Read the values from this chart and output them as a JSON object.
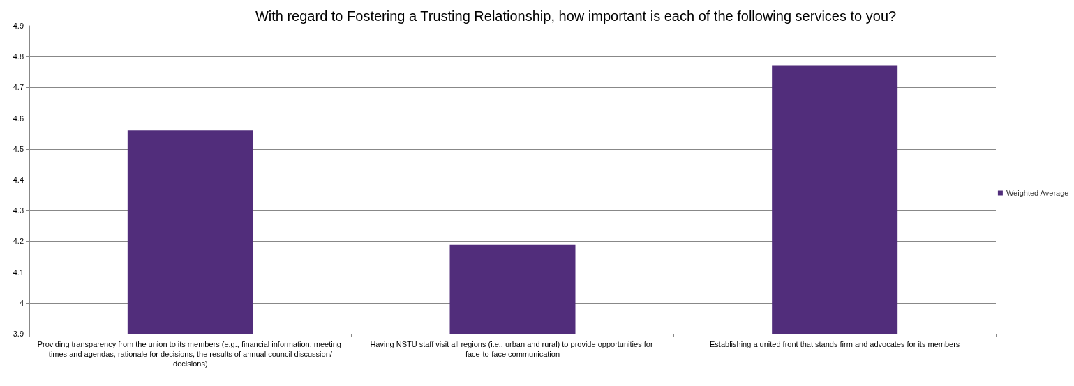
{
  "chart_data": {
    "type": "bar",
    "title": "With regard to Fostering a Trusting Relationship, how important is each of the following services to you?",
    "categories": [
      "Providing transparency from the union to its members (e.g., financial information, meeting times and agendas, rationale for decisions, the results of annual council discussion/decisions)",
      "Having NSTU staff visit all regions (i.e., urban and rural) to provide opportunities for face-to-face communication",
      "Establishing a united front that stands firm and advocates for its members"
    ],
    "series": [
      {
        "name": "Weighted Average",
        "color": "#512d7b",
        "values": [
          4.56,
          4.19,
          4.77
        ]
      }
    ],
    "ylim": [
      3.9,
      4.9
    ],
    "yticks": [
      3.9,
      4,
      4.1,
      4.2,
      4.3,
      4.4,
      4.5,
      4.6,
      4.7,
      4.8,
      4.9
    ],
    "grid": "y",
    "legend": "right"
  }
}
